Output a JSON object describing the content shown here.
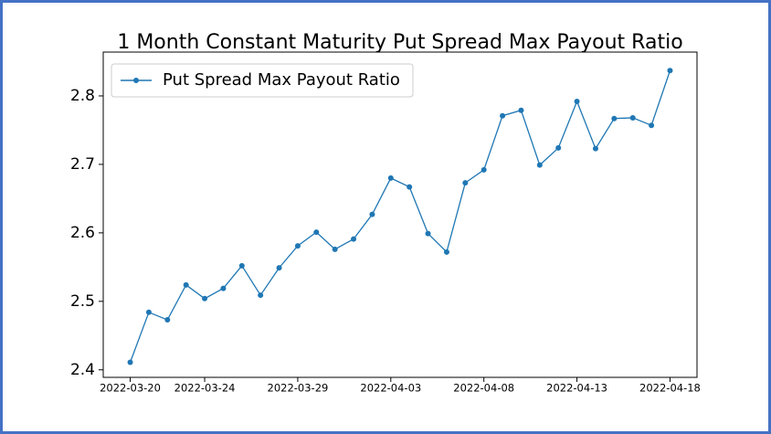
{
  "chart_data": {
    "type": "line",
    "title": "1 Month Constant Maturity Put Spread Max Payout Ratio",
    "x": [
      "2022-03-20",
      "2022-03-21",
      "2022-03-22",
      "2022-03-23",
      "2022-03-24",
      "2022-03-25",
      "2022-03-26",
      "2022-03-27",
      "2022-03-28",
      "2022-03-29",
      "2022-03-30",
      "2022-03-31",
      "2022-04-01",
      "2022-04-02",
      "2022-04-03",
      "2022-04-04",
      "2022-04-05",
      "2022-04-06",
      "2022-04-07",
      "2022-04-08",
      "2022-04-09",
      "2022-04-10",
      "2022-04-11",
      "2022-04-12",
      "2022-04-13",
      "2022-04-14",
      "2022-04-15",
      "2022-04-16",
      "2022-04-17",
      "2022-04-18"
    ],
    "series": [
      {
        "name": "Put Spread Max Payout Ratio",
        "color": "#1f77b4",
        "values": [
          2.411,
          2.484,
          2.473,
          2.524,
          2.504,
          2.519,
          2.552,
          2.509,
          2.549,
          2.581,
          2.601,
          2.576,
          2.591,
          2.627,
          2.68,
          2.667,
          2.599,
          2.572,
          2.673,
          2.692,
          2.771,
          2.779,
          2.699,
          2.724,
          2.792,
          2.723,
          2.767,
          2.768,
          2.757,
          2.837
        ]
      }
    ],
    "xticks": [
      "2022-03-20",
      "2022-03-24",
      "2022-03-29",
      "2022-04-03",
      "2022-04-08",
      "2022-04-13",
      "2022-04-18"
    ],
    "ylim": [
      2.389,
      2.864
    ],
    "yticks": [
      2.4,
      2.5,
      2.6,
      2.7,
      2.8
    ],
    "legend": "upper left",
    "grid": false
  }
}
